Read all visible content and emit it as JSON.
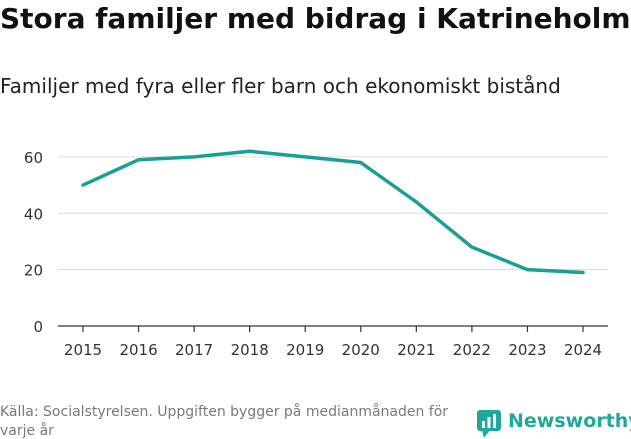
{
  "header": {
    "title": "Stora familjer med bidrag i Katrineholm",
    "subtitle": "Familjer med fyra eller fler barn och ekonomiskt bistånd"
  },
  "footer": {
    "source": "Källa: Socialstyrelsen. Uppgiften bygger på medianmånaden för varje år",
    "brand": "Newsworthy",
    "brand_icon": "newsworthy-logo-icon"
  },
  "colors": {
    "line": "#1a9e96",
    "grid": "#dddddd",
    "axis": "#333333",
    "brand": "#1fa89b"
  },
  "chart_data": {
    "type": "line",
    "title": "Stora familjer med bidrag i Katrineholm",
    "subtitle": "Familjer med fyra eller fler barn och ekonomiskt bistånd",
    "xlabel": "",
    "ylabel": "",
    "x": [
      "2015",
      "2016",
      "2017",
      "2018",
      "2019",
      "2020",
      "2021",
      "2022",
      "2023",
      "2024"
    ],
    "series": [
      {
        "name": "Familjer med fyra eller fler barn och ekonomiskt bistånd",
        "values": [
          50,
          59,
          60,
          62,
          60,
          58,
          44,
          28,
          20,
          19
        ]
      }
    ],
    "ylim": [
      0,
      66
    ],
    "yticks": [
      0,
      20,
      40,
      60
    ],
    "grid": true,
    "legend": "none"
  }
}
